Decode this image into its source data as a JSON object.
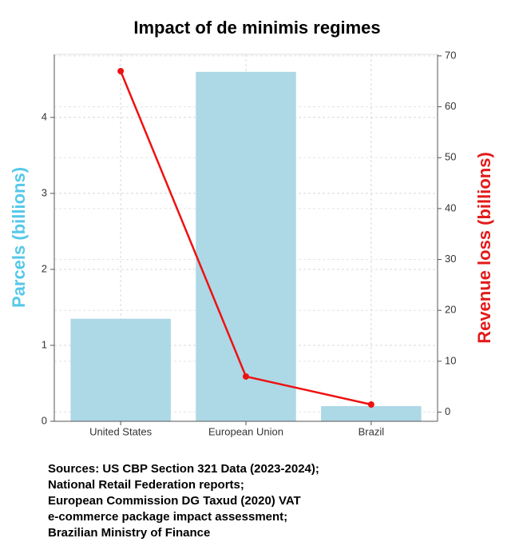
{
  "chart_data": {
    "type": "bar_line",
    "title": "Impact of de minimis regimes",
    "categories": [
      "United States",
      "European Union",
      "Brazil"
    ],
    "series": [
      {
        "name": "Parcels (billions)",
        "type": "bar",
        "color": "#add8e6",
        "values": [
          1.35,
          4.6,
          0.2
        ]
      },
      {
        "name": "Revenue loss (billions)",
        "type": "line",
        "axis": "y2",
        "color": "#ee1111",
        "values": [
          67,
          7,
          1.5
        ]
      }
    ],
    "ylabel": "Parcels (billions)",
    "ylabel_color": "#55c8ea",
    "y2label": "Revenue loss (billions)",
    "y2label_color": "#e31a1a",
    "ylim": [
      0,
      4.83
    ],
    "yticks": [
      0,
      1,
      2,
      3,
      4
    ],
    "y2lim": [
      -1.8,
      70.3
    ],
    "y2ticks": [
      0,
      10,
      20,
      30,
      40,
      50,
      60,
      70
    ],
    "grid": true,
    "sources": [
      "Sources: US CBP Section 321 Data (2023-2024);",
      "National Retail Federation reports;",
      "European Commission DG Taxud (2020) VAT",
      "e-commerce package impact assessment;",
      "Brazilian Ministry of Finance"
    ]
  }
}
